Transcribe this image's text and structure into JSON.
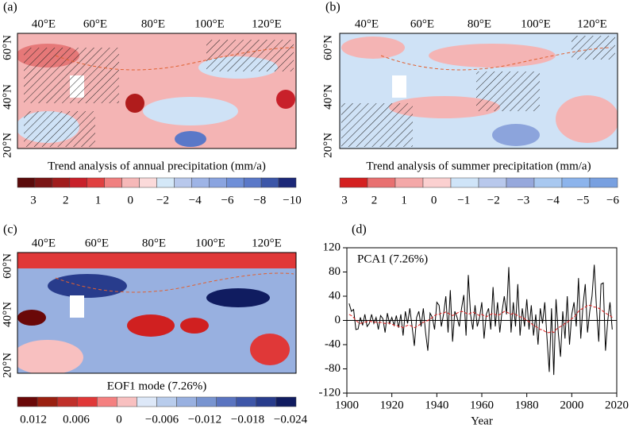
{
  "chart_data": [
    {
      "type": "map",
      "panel": "(a)",
      "title": "Trend analysis of annual precipitation (mm/a)",
      "lon_labels": [
        "40°E",
        "60°E",
        "80°E",
        "100°E",
        "120°E"
      ],
      "lat_labels": [
        "60°N",
        "40°N",
        "20°N"
      ],
      "colorbar_colors": [
        "#5a0a0a",
        "#7a1515",
        "#a01c1c",
        "#c8202a",
        "#e04040",
        "#f08080",
        "#f6b8b8",
        "#fbdada",
        "#d4e8f8",
        "#b8c8ec",
        "#9eb4e6",
        "#8aa4e0",
        "#6f8fd8",
        "#5a78c8",
        "#3c56a8",
        "#1c2878"
      ],
      "colorbar_ticks": [
        3,
        2,
        1,
        0,
        {
          "value": -2,
          "label": "−2"
        },
        {
          "value": -4,
          "label": "−4"
        },
        {
          "value": -6,
          "label": "−6"
        },
        {
          "value": -8,
          "label": "−8"
        },
        {
          "value": -10,
          "label": "−10"
        }
      ]
    },
    {
      "type": "map",
      "panel": "(b)",
      "title": "Trend analysis of summer precipitation (mm/a)",
      "lon_labels": [
        "40°E",
        "60°E",
        "80°E",
        "100°E",
        "120°E"
      ],
      "lat_labels": [
        "60°N",
        "40°N",
        "20°N"
      ],
      "colorbar_colors": [
        "#d42020",
        "#e87070",
        "#f4a8a8",
        "#fbd0d0",
        "#cfe4f8",
        "#b8c8ec",
        "#96a8dc",
        "#a8c8f0",
        "#8cb4ec",
        "#78a0e0"
      ],
      "colorbar_ticks": [
        3,
        2,
        1,
        0,
        {
          "value": -1,
          "label": "−1"
        },
        {
          "value": -2,
          "label": "−2"
        },
        {
          "value": -3,
          "label": "−3"
        },
        {
          "value": -4,
          "label": "−4"
        },
        {
          "value": -5,
          "label": "−5"
        },
        {
          "value": -6,
          "label": "−6"
        }
      ]
    },
    {
      "type": "map",
      "panel": "(c)",
      "title": "EOF1 mode (7.26%)",
      "lon_labels": [
        "40°E",
        "60°E",
        "80°E",
        "100°E",
        "120°E"
      ],
      "lat_labels": [
        "60°N",
        "40°N",
        "20°N"
      ],
      "colorbar_colors": [
        "#6a0808",
        "#9a2010",
        "#c0302a",
        "#e03838",
        "#f48080",
        "#f8c0c0",
        "#dde8f8",
        "#b8ccec",
        "#98b0e0",
        "#7894d0",
        "#5a74c0",
        "#3e56a8",
        "#283c8c",
        "#101c60"
      ],
      "colorbar_ticks": [
        0.012,
        0.006,
        0,
        {
          "value": -0.006,
          "label": "−0.006"
        },
        {
          "value": -0.012,
          "label": "−0.012"
        },
        {
          "value": -0.018,
          "label": "−0.018"
        },
        {
          "value": -0.024,
          "label": "−0.024"
        }
      ]
    },
    {
      "type": "line",
      "panel": "(d)",
      "annotation": "PCA1 (7.26%)",
      "xlabel": "Year",
      "x": [
        1901,
        1902,
        1903,
        1904,
        1905,
        1906,
        1907,
        1908,
        1909,
        1910,
        1911,
        1912,
        1913,
        1914,
        1915,
        1916,
        1917,
        1918,
        1919,
        1920,
        1921,
        1922,
        1923,
        1924,
        1925,
        1926,
        1927,
        1928,
        1929,
        1930,
        1931,
        1932,
        1933,
        1934,
        1935,
        1936,
        1937,
        1938,
        1939,
        1940,
        1941,
        1942,
        1943,
        1944,
        1945,
        1946,
        1947,
        1948,
        1949,
        1950,
        1951,
        1952,
        1953,
        1954,
        1955,
        1956,
        1957,
        1958,
        1959,
        1960,
        1961,
        1962,
        1963,
        1964,
        1965,
        1966,
        1967,
        1968,
        1969,
        1970,
        1971,
        1972,
        1973,
        1974,
        1975,
        1976,
        1977,
        1978,
        1979,
        1980,
        1981,
        1982,
        1983,
        1984,
        1985,
        1986,
        1987,
        1988,
        1989,
        1990,
        1991,
        1992,
        1993,
        1994,
        1995,
        1996,
        1997,
        1998,
        1999,
        2000,
        2001,
        2002,
        2003,
        2004,
        2005,
        2006,
        2007,
        2008,
        2009,
        2010,
        2011,
        2012,
        2013,
        2014,
        2015,
        2016,
        2017,
        2018
      ],
      "series": [
        {
          "color": "#000000",
          "dash": false,
          "values": [
            28,
            15,
            18,
            -15,
            -14,
            5,
            -8,
            10,
            -10,
            -5,
            10,
            -5,
            5,
            -15,
            8,
            3,
            -20,
            12,
            -5,
            5,
            -8,
            8,
            -12,
            10,
            -25,
            15,
            -5,
            20,
            -10,
            -42,
            5,
            15,
            -10,
            20,
            -20,
            -50,
            12,
            5,
            -15,
            30,
            25,
            -10,
            10,
            40,
            -20,
            50,
            -35,
            15,
            5,
            -10,
            20,
            42,
            -25,
            75,
            10,
            -15,
            25,
            -10,
            5,
            30,
            -30,
            10,
            20,
            -15,
            55,
            -10,
            30,
            -20,
            15,
            40,
            10,
            88,
            -20,
            30,
            -10,
            60,
            -25,
            20,
            -10,
            35,
            -15,
            25,
            -25,
            10,
            -40,
            20,
            -5,
            30,
            -30,
            -85,
            20,
            -90,
            35,
            -20,
            -60,
            15,
            -30,
            40,
            -40,
            10,
            30,
            -10,
            70,
            -30,
            25,
            60,
            -20,
            15,
            40,
            92,
            20,
            -35,
            60,
            62,
            -50,
            0,
            30,
            -15
          ]
        },
        {
          "color": "#e02020",
          "dash": true,
          "values": [
            10,
            8,
            5,
            0,
            -3,
            -5,
            -4,
            -3,
            -2,
            -1,
            -2,
            -3,
            -3,
            -4,
            -3,
            -4,
            -5,
            -4,
            -5,
            -6,
            -8,
            -8,
            -10,
            -10,
            -12,
            -10,
            -8,
            -8,
            -10,
            -12,
            -10,
            -8,
            -5,
            -3,
            -2,
            0,
            2,
            5,
            8,
            10,
            10,
            12,
            12,
            14,
            12,
            10,
            8,
            10,
            12,
            14,
            15,
            14,
            12,
            10,
            12,
            14,
            12,
            10,
            8,
            10,
            8,
            6,
            8,
            10,
            12,
            10,
            8,
            10,
            12,
            15,
            14,
            12,
            10,
            12,
            10,
            8,
            6,
            5,
            3,
            0,
            -2,
            -5,
            -8,
            -10,
            -12,
            -15,
            -15,
            -18,
            -20,
            -20,
            -18,
            -20,
            -15,
            -12,
            -10,
            -8,
            -5,
            -3,
            0,
            3,
            5,
            10,
            15,
            18,
            20,
            22,
            25,
            25,
            24,
            22,
            22,
            20,
            18,
            15,
            12,
            10,
            8,
            5
          ]
        }
      ],
      "xlim": [
        1900,
        2020
      ],
      "xticks": [
        1900,
        1920,
        1940,
        1960,
        1980,
        2000,
        2020
      ],
      "ylim": [
        -120,
        120
      ],
      "yticks": [
        -120,
        -80,
        -40,
        0,
        40,
        80,
        120
      ]
    }
  ]
}
